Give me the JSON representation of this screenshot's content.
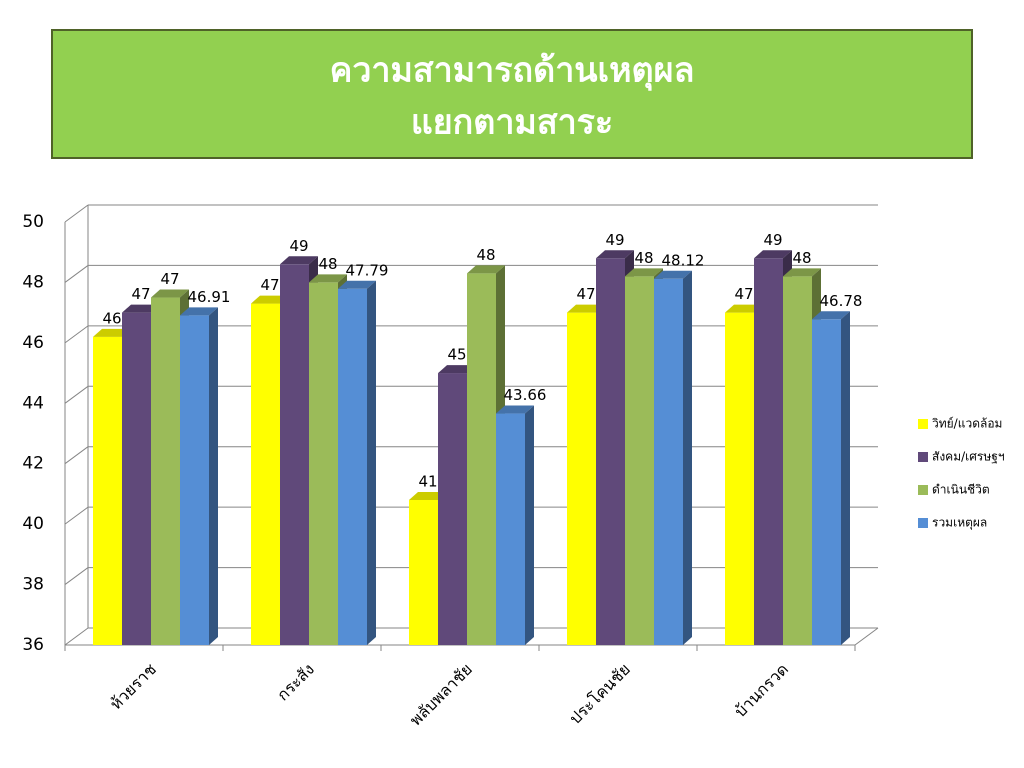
{
  "chart_data": {
    "type": "bar3d",
    "title": [
      "ความสามารถด้านเหตุผล",
      "แยกตามสาระ"
    ],
    "categories": [
      "ห้วยราช",
      "กระสัง",
      "พลับพลาชัย",
      "ประโคนชัย",
      "บ้านกรวด"
    ],
    "series": [
      {
        "name": "วิทย์/แวดล้อม",
        "color": "#ffff00",
        "values": [
          46.2,
          47.3,
          40.8,
          47,
          47
        ],
        "value_labels": [
          "46",
          "47",
          "41",
          "47",
          "47"
        ]
      },
      {
        "name": "สังคม/เศรษฐฯ",
        "color": "#60497a",
        "values": [
          47,
          48.6,
          45,
          48.8,
          48.8
        ],
        "value_labels": [
          "47",
          "49",
          "45",
          "49",
          "49"
        ]
      },
      {
        "name": "ดำเนินชีวิต",
        "color": "#9bbb59",
        "values": [
          47.5,
          48,
          48.3,
          48.2,
          48.2
        ],
        "value_labels": [
          "47",
          "48",
          "48",
          "48",
          "48"
        ]
      },
      {
        "name": "รวมเหตุผล",
        "color": "#558ed5",
        "values": [
          46.91,
          47.79,
          43.66,
          48.12,
          46.78
        ],
        "value_labels": [
          "46.91",
          "47.79",
          "43.66",
          "48.12",
          "46.78"
        ]
      }
    ],
    "ylim": [
      36,
      50
    ],
    "yticks": [
      36,
      38,
      40,
      42,
      44,
      46,
      48,
      50
    ],
    "grid": true,
    "legend": "right"
  }
}
